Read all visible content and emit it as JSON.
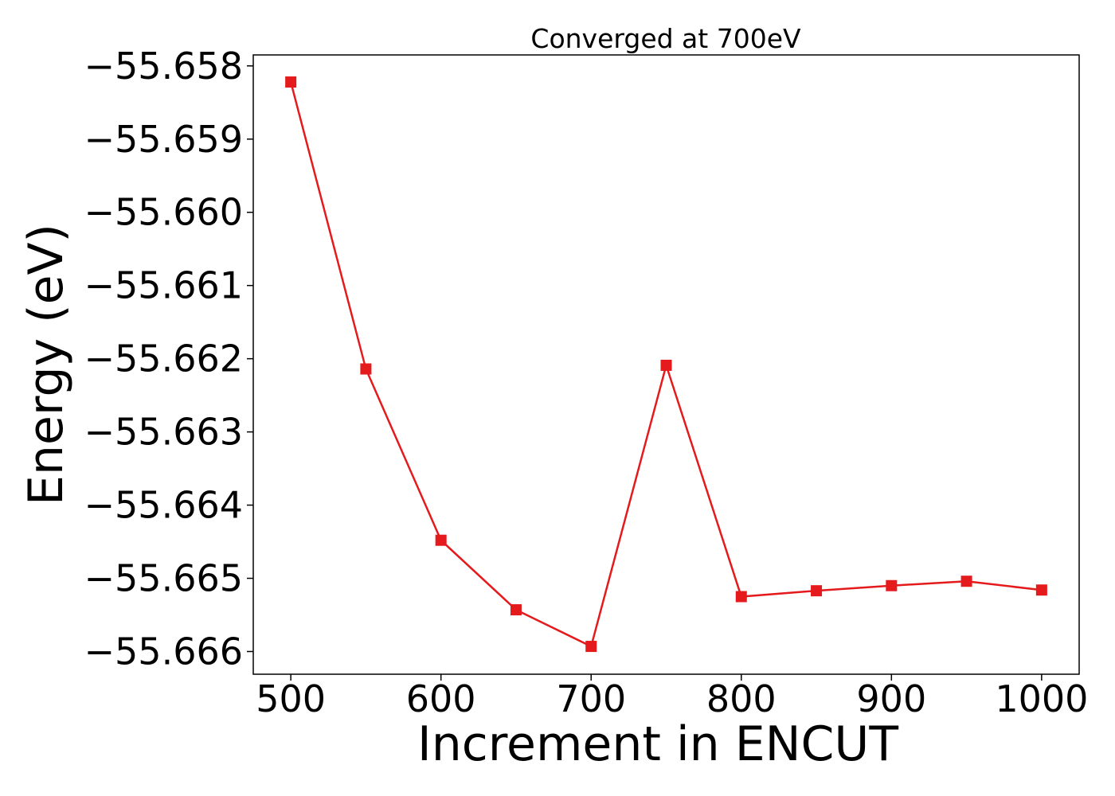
{
  "chart_data": {
    "type": "line",
    "title": "Converged at 700eV",
    "xlabel": "Increment in ENCUT",
    "ylabel": "Energy (eV)",
    "x": [
      500,
      550,
      600,
      650,
      700,
      750,
      800,
      850,
      900,
      950,
      1000
    ],
    "series": [
      {
        "values": [
          -55.65822,
          -55.66214,
          -55.66448,
          -55.66543,
          -55.66593,
          -55.66209,
          -55.66525,
          -55.66517,
          -55.6651,
          -55.66504,
          -55.66516
        ],
        "color": "#e41a1c",
        "marker": "square"
      }
    ],
    "xticks": [
      500,
      600,
      700,
      800,
      900,
      1000
    ],
    "yticks": [
      -55.658,
      -55.659,
      -55.66,
      -55.661,
      -55.662,
      -55.663,
      -55.664,
      -55.665,
      -55.666
    ],
    "ytick_labels": [
      "−55.658",
      "−55.659",
      "−55.660",
      "−55.661",
      "−55.662",
      "−55.663",
      "−55.664",
      "−55.665",
      "−55.666"
    ],
    "xlim": [
      475,
      1025
    ],
    "ylim": [
      -55.66631,
      -55.65785
    ],
    "grid": false,
    "legend": "none"
  }
}
